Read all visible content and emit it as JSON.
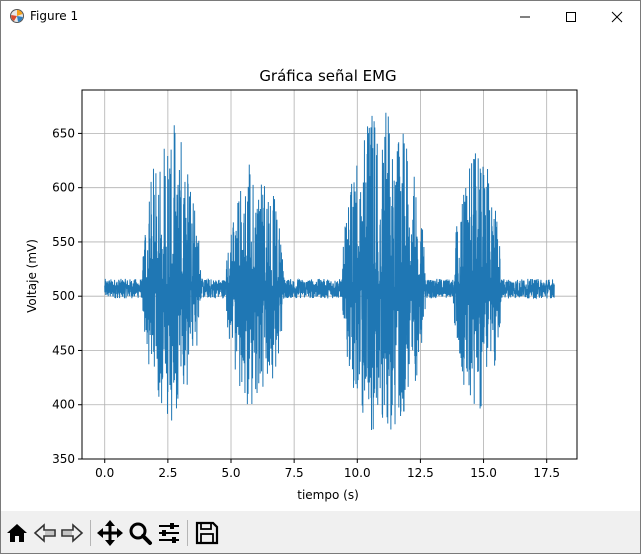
{
  "window": {
    "title": "Figure 1",
    "app_icon": "matplotlib-figure-icon",
    "controls": [
      "minimize-icon",
      "maximize-icon",
      "close-icon"
    ]
  },
  "toolbar": {
    "buttons": [
      "home-icon",
      "back-arrow-icon",
      "forward-arrow-icon",
      "pan-move-icon",
      "zoom-magnifier-icon",
      "configure-subplots-icon",
      "save-floppy-icon"
    ]
  },
  "colors": {
    "line": "#1f77b4",
    "grid": "#b0b0b0",
    "toolbar_bg": "#f0f0f0"
  },
  "chart_data": {
    "type": "line",
    "title": "Gráfica señal EMG",
    "xlabel": "tiempo (s)",
    "ylabel": "Voltaje (mV)",
    "xlim": [
      -0.9,
      18.7
    ],
    "ylim": [
      350,
      690
    ],
    "xticks": [
      0.0,
      2.5,
      5.0,
      7.5,
      10.0,
      12.5,
      15.0,
      17.5
    ],
    "xtick_labels": [
      "0.0",
      "2.5",
      "5.0",
      "7.5",
      "10.0",
      "12.5",
      "15.0",
      "17.5"
    ],
    "yticks": [
      350,
      400,
      450,
      500,
      550,
      600,
      650
    ],
    "ytick_labels": [
      "350",
      "400",
      "450",
      "500",
      "550",
      "600",
      "650"
    ],
    "grid": true,
    "x_range": [
      0.0,
      17.8
    ],
    "baseline": 507,
    "bursts": [
      {
        "start": 1.5,
        "end": 3.8,
        "max": 661,
        "min": 385
      },
      {
        "start": 4.8,
        "end": 7.1,
        "max": 625,
        "min": 392
      },
      {
        "start": 9.4,
        "end": 12.7,
        "max": 676,
        "min": 365
      },
      {
        "start": 13.8,
        "end": 15.7,
        "max": 633,
        "min": 395
      }
    ],
    "series": [
      {
        "color": "#1f77b4"
      }
    ]
  }
}
